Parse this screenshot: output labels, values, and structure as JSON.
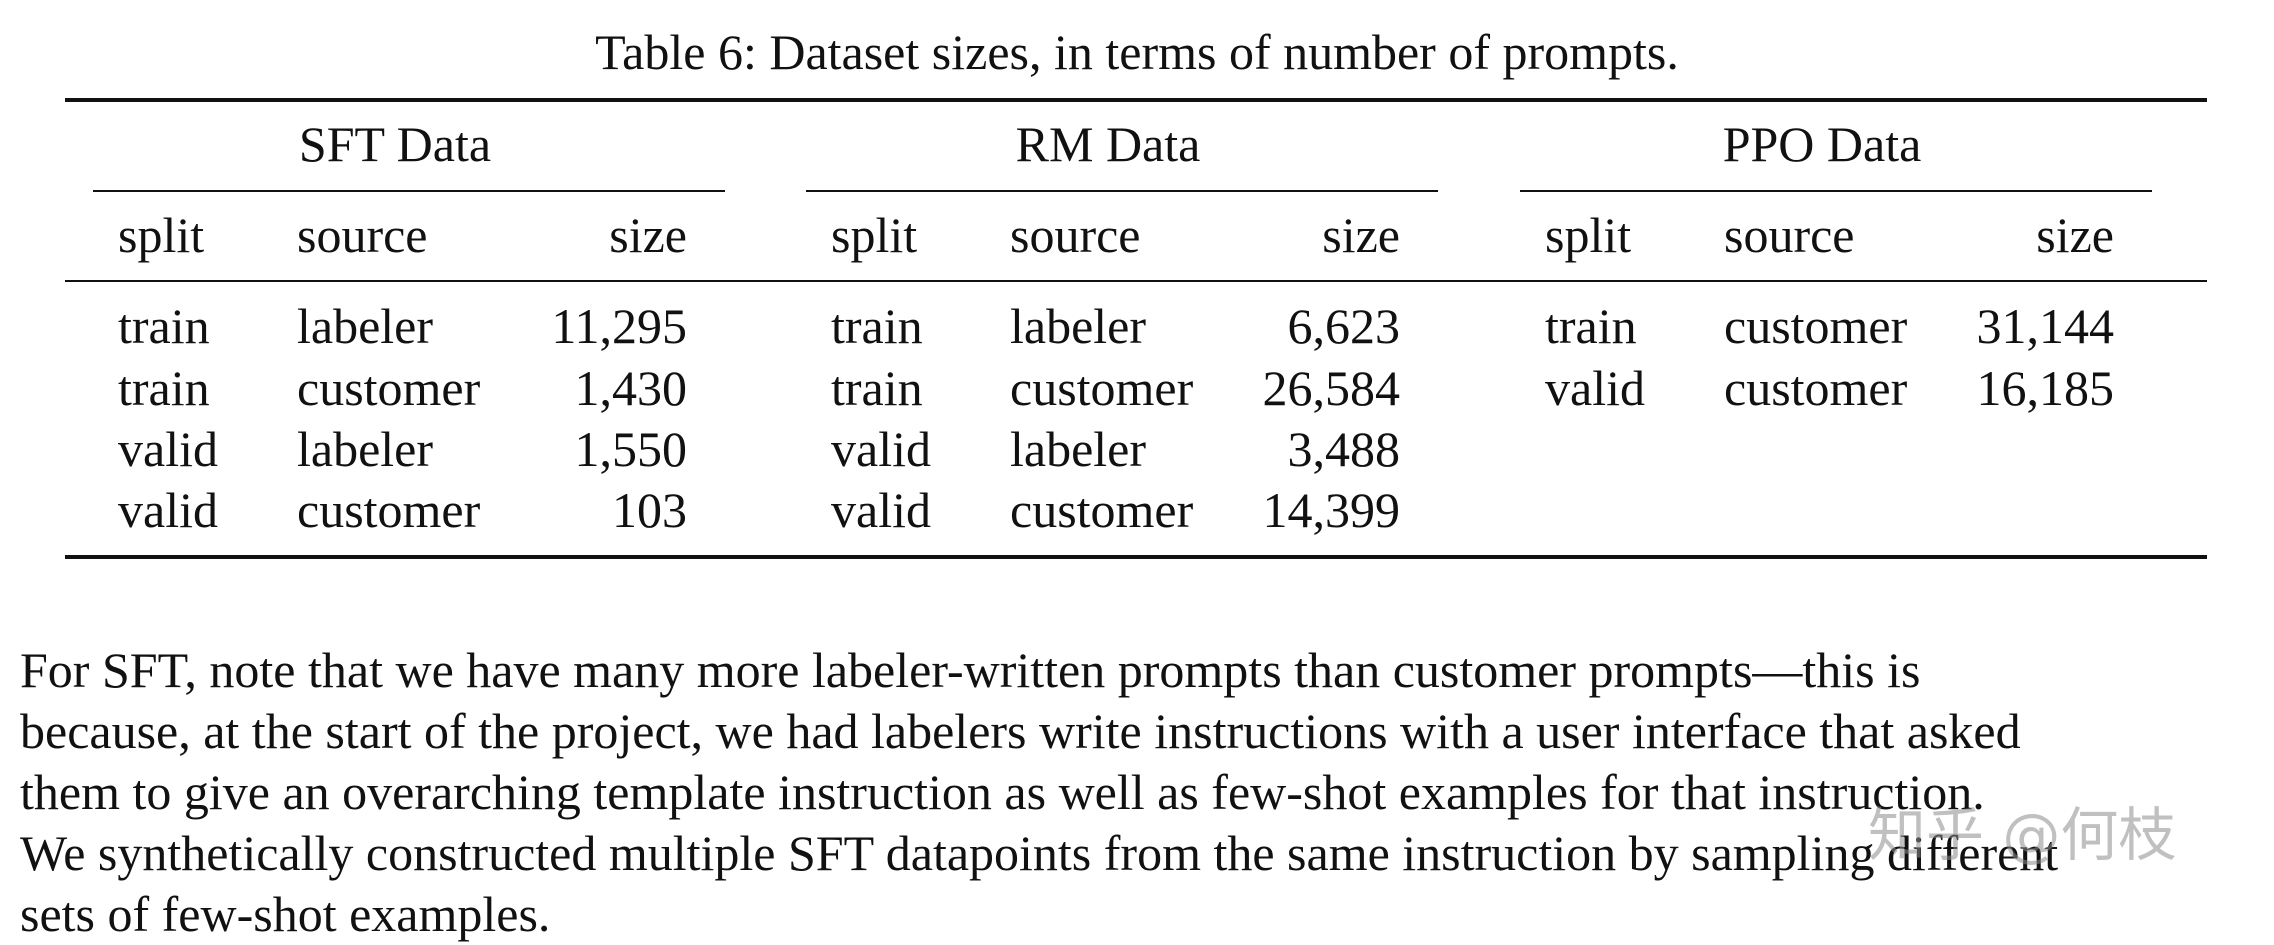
{
  "caption": "Table 6: Dataset sizes, in terms of number of prompts.",
  "table": {
    "groups": [
      {
        "title": "SFT Data",
        "headers": {
          "split": "split",
          "source": "source",
          "size": "size"
        },
        "rows": [
          {
            "split": "train",
            "source": "labeler",
            "size": "11,295"
          },
          {
            "split": "train",
            "source": "customer",
            "size": "1,430"
          },
          {
            "split": "valid",
            "source": "labeler",
            "size": "1,550"
          },
          {
            "split": "valid",
            "source": "customer",
            "size": "103"
          }
        ]
      },
      {
        "title": "RM Data",
        "headers": {
          "split": "split",
          "source": "source",
          "size": "size"
        },
        "rows": [
          {
            "split": "train",
            "source": "labeler",
            "size": "6,623"
          },
          {
            "split": "train",
            "source": "customer",
            "size": "26,584"
          },
          {
            "split": "valid",
            "source": "labeler",
            "size": "3,488"
          },
          {
            "split": "valid",
            "source": "customer",
            "size": "14,399"
          }
        ]
      },
      {
        "title": "PPO Data",
        "headers": {
          "split": "split",
          "source": "source",
          "size": "size"
        },
        "rows": [
          {
            "split": "train",
            "source": "customer",
            "size": "31,144"
          },
          {
            "split": "valid",
            "source": "customer",
            "size": "16,185"
          }
        ]
      }
    ]
  },
  "paragraph": {
    "line1": "For SFT, note that we have many more labeler-written prompts than customer prompts—this is",
    "line2": "because, at the start of the project, we had labelers write instructions with a user interface that asked",
    "line3": "them to give an overarching template instruction as well as few-shot examples for that instruction.",
    "line4": "We synthetically constructed multiple SFT datapoints from the same instruction by sampling different",
    "line5": "sets of few-shot examples."
  },
  "watermark": "知乎 @何枝"
}
